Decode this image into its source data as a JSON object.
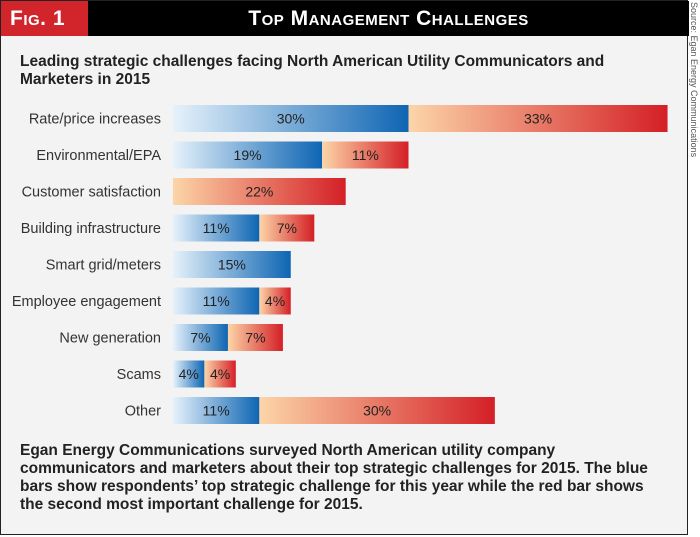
{
  "header": {
    "fig_label": "Fig. 1",
    "title": "Top Management Challenges"
  },
  "source_note": "Source: Egan Energy Communications",
  "subtitle": "Leading strategic challenges facing North American Utility Communicators and Marketers in 2015",
  "description": "Egan Energy Communications surveyed North American utility company communicators and marketers about their top strategic challenges for 2015. The blue bars show respondents’ top strategic challenge for this year while the red bar shows the second most important challenge for 2015.",
  "colors": {
    "blue_light": "#e6f2fb",
    "blue_dark": "#0e65b3",
    "red_light": "#fcd5a8",
    "red_dark": "#d41f26",
    "header_bg": "#000000",
    "fig_bg": "#d1252b"
  },
  "chart_data": {
    "type": "bar",
    "orientation": "horizontal",
    "stacked": true,
    "title": "Leading strategic challenges facing North American Utility Communicators and Marketers in 2015",
    "categories": [
      "Rate/price increases",
      "Environmental/EPA",
      "Customer satisfaction",
      "Building infrastructure",
      "Smart grid/meters",
      "Employee engagement",
      "New generation",
      "Scams",
      "Other"
    ],
    "series": [
      {
        "name": "Top strategic challenge",
        "color": "blue",
        "values": [
          30,
          19,
          null,
          11,
          15,
          11,
          7,
          4,
          11
        ],
        "labels": [
          "30%",
          "19%",
          "",
          "11%",
          "15%",
          "11%",
          "7%",
          "4%",
          "11%"
        ]
      },
      {
        "name": "Second most important challenge",
        "color": "red",
        "values": [
          33,
          11,
          22,
          7,
          null,
          4,
          7,
          4,
          30
        ],
        "labels": [
          "33%",
          "11%",
          "22%",
          "7%",
          "",
          "4%",
          "7%",
          "4%",
          "30%"
        ]
      }
    ],
    "unit": "%",
    "xlim": [
      0,
      63
    ],
    "grid": false
  }
}
